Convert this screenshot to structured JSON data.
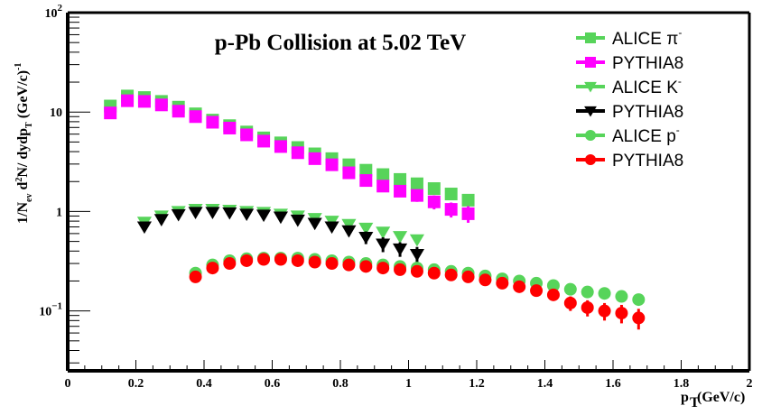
{
  "chart_data": {
    "type": "scatter",
    "title": "p-Pb Collision at 5.02 TeV",
    "xlabel": "p_T(GeV/c)",
    "ylabel": "1/N_ev d^2N/ dydp_T (GeV/c)^-1",
    "xlim": [
      0,
      2
    ],
    "ylim": [
      0.025,
      100
    ],
    "yscale": "log",
    "grid": false,
    "legend_position": "top-right",
    "x_ticks": [
      "0",
      "0.2",
      "0.4",
      "0.6",
      "0.8",
      "1",
      "1.2",
      "1.4",
      "1.6",
      "1.8",
      "2"
    ],
    "y_ticks": [
      {
        "base": "10",
        "exp": "−1",
        "value": 0.1
      },
      {
        "base": "1",
        "exp": "",
        "value": 1
      },
      {
        "base": "10",
        "exp": "",
        "value": 10
      },
      {
        "base": "10",
        "exp": "2",
        "value": 100
      }
    ],
    "series": [
      {
        "name": "ALICE π⁻",
        "legend_label": "ALICE π",
        "legend_sup": "-",
        "color": "#57d45a",
        "marker": "square",
        "x": [
          0.125,
          0.175,
          0.225,
          0.275,
          0.325,
          0.375,
          0.425,
          0.475,
          0.525,
          0.575,
          0.625,
          0.675,
          0.725,
          0.775,
          0.825,
          0.875,
          0.925,
          0.975,
          1.025,
          1.075,
          1.125,
          1.175
        ],
        "y": [
          11.5,
          14.5,
          14.0,
          12.8,
          11.2,
          9.6,
          8.3,
          7.3,
          6.3,
          5.5,
          4.9,
          4.4,
          3.8,
          3.4,
          2.95,
          2.6,
          2.35,
          2.1,
          1.9,
          1.7,
          1.5,
          1.3
        ],
        "err": []
      },
      {
        "name": "PYTHIA8 (π⁻)",
        "legend_label": "PYTHIA8",
        "legend_sup": "",
        "color": "#ff00ff",
        "marker": "square",
        "x": [
          0.125,
          0.175,
          0.225,
          0.275,
          0.325,
          0.375,
          0.425,
          0.475,
          0.525,
          0.575,
          0.625,
          0.675,
          0.725,
          0.775,
          0.825,
          0.875,
          0.925,
          0.975,
          1.025,
          1.075,
          1.125,
          1.175
        ],
        "y": [
          9.8,
          13.0,
          12.8,
          11.8,
          10.2,
          9.0,
          7.9,
          6.9,
          5.9,
          5.1,
          4.5,
          3.9,
          3.4,
          2.95,
          2.45,
          2.05,
          1.8,
          1.6,
          1.45,
          1.25,
          1.05,
          0.95
        ],
        "err": [
          0,
          0,
          0,
          0,
          0,
          0,
          0,
          0,
          0,
          0,
          0,
          0,
          0,
          0,
          0.2,
          0.22,
          0.2,
          0.2,
          0.2,
          0.2,
          0.18,
          0.18
        ]
      },
      {
        "name": "ALICE K⁻",
        "legend_label": "ALICE K",
        "legend_sup": "-",
        "color": "#57d45a",
        "marker": "triangle-down",
        "x": [
          0.225,
          0.275,
          0.325,
          0.375,
          0.425,
          0.475,
          0.525,
          0.575,
          0.625,
          0.675,
          0.725,
          0.775,
          0.825,
          0.875,
          0.925,
          0.975,
          1.025
        ],
        "y": [
          0.78,
          0.9,
          1.0,
          1.05,
          1.05,
          1.03,
          1.0,
          0.98,
          0.94,
          0.9,
          0.85,
          0.8,
          0.74,
          0.68,
          0.62,
          0.56,
          0.52
        ],
        "err": []
      },
      {
        "name": "PYTHIA8 (K⁻)",
        "legend_label": "PYTHIA8",
        "legend_sup": "",
        "color": "#000000",
        "marker": "triangle-down",
        "x": [
          0.225,
          0.275,
          0.325,
          0.375,
          0.425,
          0.475,
          0.525,
          0.575,
          0.625,
          0.675,
          0.725,
          0.775,
          0.825,
          0.875,
          0.925,
          0.975,
          1.025
        ],
        "y": [
          0.7,
          0.83,
          0.93,
          0.98,
          0.98,
          0.97,
          0.94,
          0.92,
          0.88,
          0.82,
          0.76,
          0.7,
          0.64,
          0.55,
          0.47,
          0.42,
          0.37
        ],
        "err": [
          0,
          0,
          0,
          0,
          0,
          0,
          0,
          0,
          0,
          0,
          0,
          0,
          0.07,
          0.08,
          0.08,
          0.07,
          0.07
        ]
      },
      {
        "name": "ALICE p⁻",
        "legend_label": "ALICE p",
        "legend_sup": "-",
        "color": "#57d45a",
        "marker": "circle",
        "x": [
          0.375,
          0.425,
          0.475,
          0.525,
          0.575,
          0.625,
          0.675,
          0.725,
          0.775,
          0.825,
          0.875,
          0.925,
          0.975,
          1.025,
          1.075,
          1.125,
          1.175,
          1.225,
          1.275,
          1.325,
          1.375,
          1.425,
          1.475,
          1.525,
          1.575,
          1.625,
          1.675
        ],
        "y": [
          0.24,
          0.29,
          0.32,
          0.335,
          0.34,
          0.34,
          0.34,
          0.33,
          0.32,
          0.31,
          0.3,
          0.29,
          0.28,
          0.27,
          0.26,
          0.25,
          0.24,
          0.225,
          0.21,
          0.2,
          0.19,
          0.18,
          0.165,
          0.155,
          0.15,
          0.14,
          0.13
        ],
        "err": []
      },
      {
        "name": "PYTHIA8 (p⁻)",
        "legend_label": "PYTHIA8",
        "legend_sup": "",
        "color": "#ff0000",
        "marker": "circle",
        "x": [
          0.375,
          0.425,
          0.475,
          0.525,
          0.575,
          0.625,
          0.675,
          0.725,
          0.775,
          0.825,
          0.875,
          0.925,
          0.975,
          1.025,
          1.075,
          1.125,
          1.175,
          1.225,
          1.275,
          1.325,
          1.375,
          1.425,
          1.475,
          1.525,
          1.575,
          1.625,
          1.675
        ],
        "y": [
          0.22,
          0.27,
          0.3,
          0.32,
          0.33,
          0.33,
          0.32,
          0.31,
          0.3,
          0.29,
          0.28,
          0.27,
          0.26,
          0.25,
          0.24,
          0.23,
          0.22,
          0.205,
          0.19,
          0.175,
          0.16,
          0.145,
          0.12,
          0.108,
          0.1,
          0.095,
          0.085
        ],
        "err": [
          0,
          0,
          0,
          0,
          0,
          0,
          0,
          0,
          0,
          0,
          0,
          0,
          0,
          0,
          0,
          0,
          0,
          0,
          0,
          0,
          0,
          0,
          0.02,
          0.02,
          0.02,
          0.02,
          0.02
        ]
      }
    ]
  }
}
